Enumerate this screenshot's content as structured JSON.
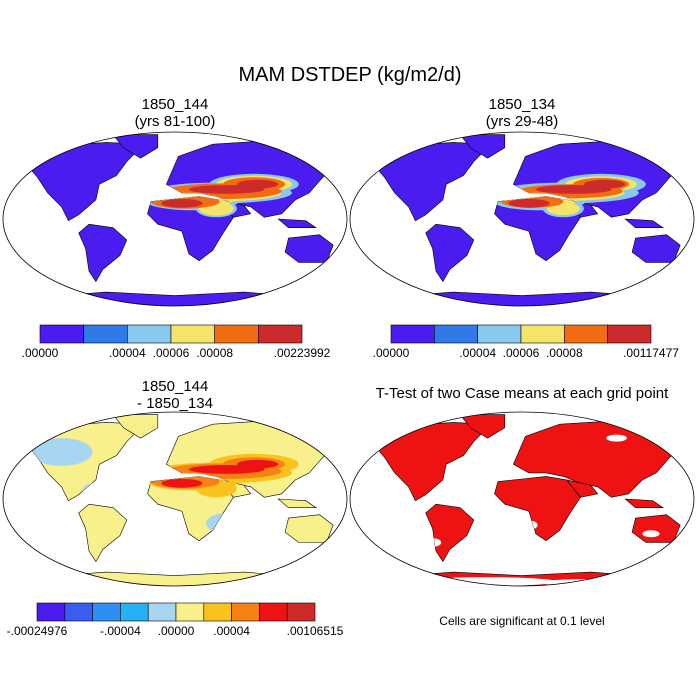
{
  "chart_data": {
    "type": "heatmap",
    "title": "MAM DSTDEP (kg/m2/d)",
    "panels": [
      {
        "id": "case1",
        "title_lines": [
          "1850_144",
          "(yrs 81-100)"
        ],
        "colorbar": {
          "colors": [
            "#4a1cf0",
            "#2f7ae8",
            "#8ac9ee",
            "#f6e46a",
            "#f26d12",
            "#cd2b2b"
          ],
          "labels": [
            ".00000",
            ".00004",
            ".00006",
            ".00008",
            ".00223992"
          ],
          "label_edges": [
            0,
            2,
            3,
            4,
            6
          ]
        }
      },
      {
        "id": "case2",
        "title_lines": [
          "1850_134",
          "(yrs 29-48)"
        ],
        "colorbar": {
          "colors": [
            "#4a1cf0",
            "#2f7ae8",
            "#8ac9ee",
            "#f6e46a",
            "#f26d12",
            "#cd2b2b"
          ],
          "labels": [
            ".00000",
            ".00004",
            ".00006",
            ".00008",
            ".00117477"
          ],
          "label_edges": [
            0,
            2,
            3,
            4,
            6
          ]
        }
      },
      {
        "id": "difference",
        "title_lines": [
          "1850_144",
          "- 1850_134"
        ],
        "colorbar": {
          "colors": [
            "#4a1cf0",
            "#3a5cf0",
            "#2f8ef2",
            "#26b2f2",
            "#a8d6f0",
            "#f8f08a",
            "#fac21e",
            "#f68214",
            "#ee1212",
            "#cf2a2a"
          ],
          "labels": [
            "-.00024976",
            "-.00004",
            ".00000",
            ".00004",
            ".00106515"
          ],
          "label_edges": [
            0,
            3,
            5,
            7,
            10
          ]
        }
      },
      {
        "id": "ttest",
        "title_lines": [
          "T-Test of two Case means at each grid point"
        ],
        "note": "Cells are significant at 0.1 level"
      }
    ]
  }
}
